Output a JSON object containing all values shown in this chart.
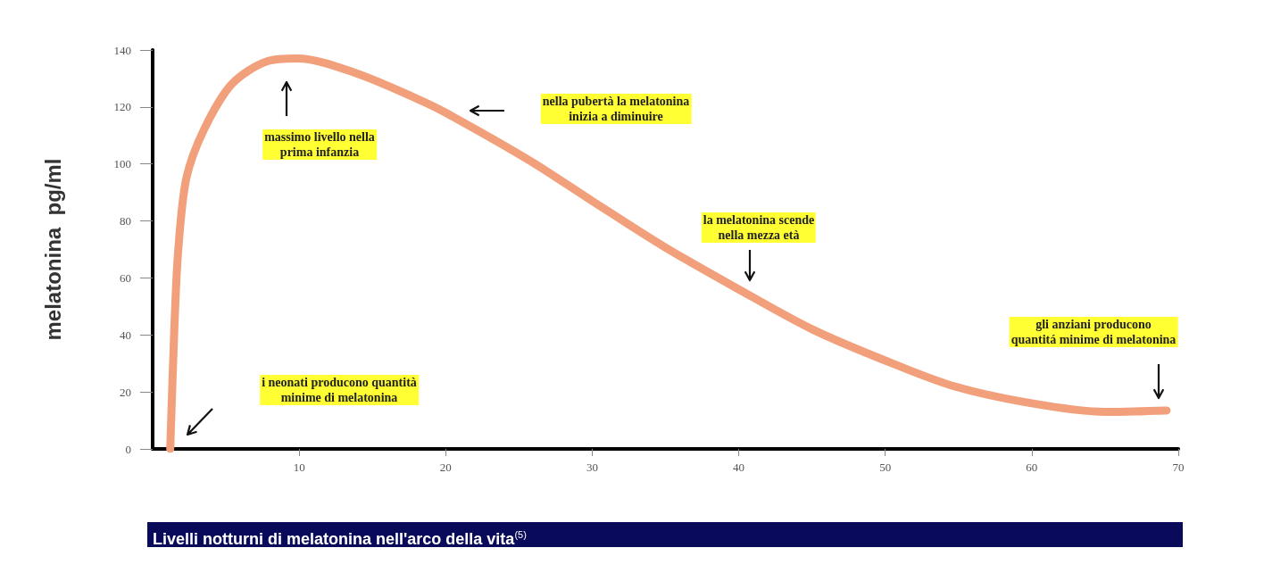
{
  "chart_data": {
    "type": "line",
    "title": "Livelli notturni di melatonina nell'arco della vita$^{(5)}$",
    "ylabel": "melatonina  pg/ml",
    "xlim": [
      0,
      70
    ],
    "xticks": [
      10,
      20,
      30,
      40,
      50,
      60,
      70
    ],
    "ylim": [
      0,
      140
    ],
    "yticks": [
      0,
      20,
      40,
      60,
      80,
      100,
      120,
      140
    ],
    "grid": false,
    "line_style": "solid",
    "series": [
      {
        "color": "#f2a07b",
        "x": [
          1.2,
          1.5,
          1.75,
          2.3,
          3.5,
          5.4,
          7.8,
          9.9,
          13.8,
          18,
          20,
          25.8,
          30,
          34.9,
          40,
          45,
          50,
          54.7,
          60,
          65,
          69.2
        ],
        "values": [
          0,
          45,
          70,
          95,
          112,
          128,
          136,
          137,
          132,
          123,
          118,
          101,
          87,
          71,
          56,
          42,
          31,
          22,
          16,
          13,
          13.5
        ]
      }
    ],
    "annotations": [
      "i neonati producono quantità\nminime di melatonina",
      "massimo livello nella\nprima infanzia",
      "nella pubertà la melatonina\ninizia a diminuire",
      "la melatonina scende\nnella mezza età",
      "gli anziani producono\nquantitá minime di melatonina"
    ]
  }
}
